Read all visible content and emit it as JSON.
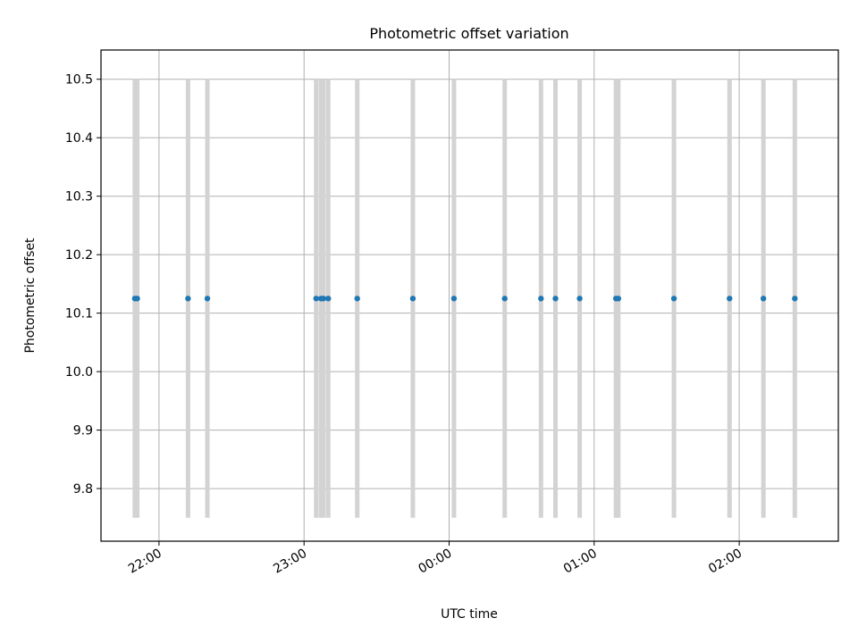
{
  "chart_data": {
    "type": "scatter",
    "title": "Photometric offset variation",
    "xlabel": "UTC time",
    "ylabel": "Photometric offset",
    "x_axis_type": "time",
    "xlim": [
      "21:36",
      "02:41"
    ],
    "ylim": [
      9.71,
      10.55
    ],
    "grid": true,
    "legend": "none",
    "x_ticks": [
      {
        "value": "22:00",
        "label": "22:00"
      },
      {
        "value": "23:00",
        "label": "23:00"
      },
      {
        "value": "00:00",
        "label": "00:00"
      },
      {
        "value": "01:00",
        "label": "01:00"
      },
      {
        "value": "02:00",
        "label": "02:00"
      }
    ],
    "y_ticks": [
      9.8,
      9.9,
      10.0,
      10.1,
      10.2,
      10.3,
      10.4,
      10.5
    ],
    "y_tick_labels": [
      "9.8",
      "9.9",
      "10.0",
      "10.1",
      "10.2",
      "10.3",
      "10.4",
      "10.5"
    ],
    "series": [
      {
        "color": "#1f77b4",
        "marker": "dot",
        "x": [
          "21:50",
          "21:51",
          "22:12",
          "22:20",
          "23:05",
          "23:07",
          "23:08",
          "23:10",
          "23:22",
          "23:45",
          "00:02",
          "00:23",
          "00:38",
          "00:44",
          "00:54",
          "01:09",
          "01:10",
          "01:33",
          "01:56",
          "02:10",
          "02:23"
        ],
        "y": [
          10.125,
          10.125,
          10.125,
          10.125,
          10.125,
          10.125,
          10.125,
          10.125,
          10.125,
          10.125,
          10.125,
          10.125,
          10.125,
          10.125,
          10.125,
          10.125,
          10.125,
          10.125,
          10.125,
          10.125,
          10.125
        ]
      }
    ],
    "vertical_bands": {
      "color": "#d3d3d3",
      "y_range": [
        9.75,
        10.5
      ],
      "x": [
        "21:50",
        "21:51",
        "22:12",
        "22:20",
        "23:05",
        "23:07",
        "23:08",
        "23:10",
        "23:22",
        "23:45",
        "00:02",
        "00:23",
        "00:38",
        "00:44",
        "00:54",
        "01:09",
        "01:10",
        "01:33",
        "01:56",
        "02:10",
        "02:23"
      ]
    }
  }
}
